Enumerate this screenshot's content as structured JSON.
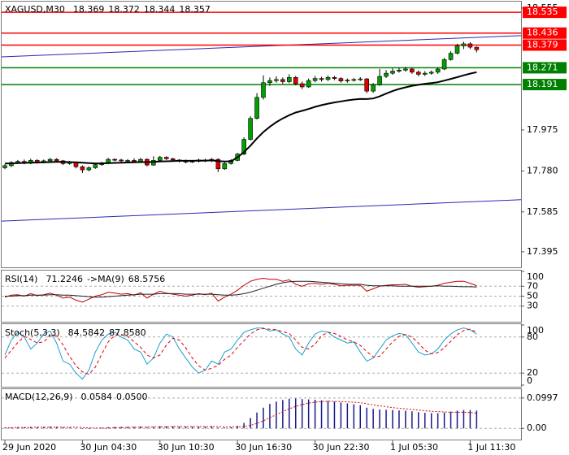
{
  "chart_data": {
    "type": "candlestick",
    "header": [
      "XAGUSD,M30",
      "18.369",
      "18.372",
      "18.344",
      "18.357"
    ],
    "open": [
      17.795,
      17.805,
      17.82,
      17.825,
      17.818,
      17.83,
      17.822,
      17.828,
      17.835,
      17.828,
      17.815,
      17.82,
      17.8,
      17.785,
      17.795,
      17.81,
      17.818,
      17.835,
      17.832,
      17.828,
      17.83,
      17.825,
      17.835,
      17.808,
      17.83,
      17.845,
      17.838,
      17.832,
      17.828,
      17.822,
      17.826,
      17.832,
      17.828,
      17.835,
      17.79,
      17.815,
      17.83,
      17.86,
      17.93,
      18.03,
      18.13,
      18.2,
      18.21,
      18.215,
      18.205,
      18.225,
      18.195,
      18.18,
      18.21,
      18.22,
      18.215,
      18.225,
      18.22,
      18.208,
      18.212,
      18.215,
      18.218,
      18.16,
      18.19,
      18.23,
      18.245,
      18.255,
      18.26,
      18.265,
      18.25,
      18.24,
      18.245,
      18.25,
      18.265,
      18.31,
      18.34,
      18.375,
      18.385,
      18.369
    ],
    "high": [
      17.812,
      17.826,
      17.832,
      17.834,
      17.838,
      17.836,
      17.834,
      17.842,
      17.84,
      17.832,
      17.828,
      17.825,
      17.806,
      17.802,
      17.816,
      17.824,
      17.842,
      17.84,
      17.838,
      17.836,
      17.84,
      17.842,
      17.84,
      17.85,
      17.852,
      17.85,
      17.842,
      17.836,
      17.834,
      17.832,
      17.838,
      17.838,
      17.842,
      17.84,
      17.822,
      17.836,
      17.866,
      17.94,
      18.04,
      18.15,
      18.235,
      18.225,
      18.23,
      18.225,
      18.24,
      18.232,
      18.205,
      18.22,
      18.232,
      18.228,
      18.235,
      18.232,
      18.226,
      18.22,
      18.222,
      18.226,
      18.222,
      18.198,
      18.265,
      18.26,
      18.268,
      18.272,
      18.275,
      18.27,
      18.258,
      18.255,
      18.258,
      18.272,
      18.318,
      18.35,
      18.385,
      18.395,
      18.392,
      18.372
    ],
    "low": [
      17.788,
      17.798,
      17.814,
      17.812,
      17.812,
      17.815,
      17.816,
      17.822,
      17.82,
      17.808,
      17.81,
      17.792,
      17.77,
      17.778,
      17.79,
      17.804,
      17.812,
      17.826,
      17.822,
      17.822,
      17.82,
      17.82,
      17.802,
      17.804,
      17.826,
      17.832,
      17.826,
      17.82,
      17.816,
      17.818,
      17.82,
      17.822,
      17.822,
      17.775,
      17.785,
      17.81,
      17.826,
      17.855,
      17.925,
      18.025,
      18.12,
      18.185,
      18.2,
      18.195,
      18.198,
      18.188,
      18.17,
      18.175,
      18.202,
      18.205,
      18.208,
      18.212,
      18.2,
      18.2,
      18.205,
      18.208,
      18.15,
      18.152,
      18.185,
      18.222,
      18.238,
      18.248,
      18.252,
      18.242,
      18.23,
      18.232,
      18.238,
      18.242,
      18.26,
      18.305,
      18.335,
      18.36,
      18.36,
      18.344
    ],
    "close": [
      17.805,
      17.82,
      17.825,
      17.818,
      17.83,
      17.822,
      17.828,
      17.835,
      17.828,
      17.815,
      17.82,
      17.8,
      17.785,
      17.795,
      17.81,
      17.818,
      17.835,
      17.832,
      17.828,
      17.83,
      17.825,
      17.835,
      17.808,
      17.83,
      17.845,
      17.838,
      17.832,
      17.828,
      17.822,
      17.826,
      17.832,
      17.828,
      17.835,
      17.79,
      17.815,
      17.83,
      17.86,
      17.93,
      18.03,
      18.13,
      18.2,
      18.21,
      18.215,
      18.205,
      18.225,
      18.195,
      18.18,
      18.21,
      18.22,
      18.215,
      18.225,
      18.22,
      18.208,
      18.212,
      18.215,
      18.218,
      18.16,
      18.19,
      18.23,
      18.245,
      18.255,
      18.26,
      18.265,
      18.25,
      18.24,
      18.245,
      18.25,
      18.265,
      18.31,
      18.34,
      18.375,
      18.385,
      18.369,
      18.357
    ],
    "up_color": "#00a000",
    "down_color": "#e00000",
    "ma": {
      "color": "#000000",
      "values": [
        17.815,
        17.816,
        17.817,
        17.818,
        17.819,
        17.82,
        17.821,
        17.822,
        17.823,
        17.823,
        17.822,
        17.821,
        17.819,
        17.817,
        17.816,
        17.816,
        17.817,
        17.818,
        17.819,
        17.82,
        17.821,
        17.822,
        17.822,
        17.823,
        17.825,
        17.826,
        17.827,
        17.828,
        17.828,
        17.828,
        17.829,
        17.829,
        17.83,
        17.827,
        17.825,
        17.826,
        17.845,
        17.87,
        17.9,
        17.935,
        17.965,
        17.99,
        18.012,
        18.03,
        18.045,
        18.058,
        18.066,
        18.075,
        18.085,
        18.093,
        18.1,
        18.106,
        18.111,
        18.116,
        18.12,
        18.123,
        18.122,
        18.125,
        18.135,
        18.148,
        18.16,
        18.17,
        18.178,
        18.185,
        18.19,
        18.195,
        18.198,
        18.202,
        18.21,
        18.218,
        18.226,
        18.235,
        18.243,
        18.25
      ]
    },
    "ylim": [
      17.325,
      18.582
    ],
    "yticks": [
      18.555,
      17.975,
      {
        "value": 17.78,
        "label": "17.780"
      },
      17.585,
      17.395
    ],
    "trendlines": [
      {
        "values": [
          18.323,
          18.424
        ],
        "color": "#2a2ab0"
      },
      {
        "values": [
          17.541,
          17.643
        ],
        "color": "#2a2ab0"
      }
    ],
    "levels": [
      {
        "value": 18.535,
        "color": "#ff0000"
      },
      {
        "value": 18.436,
        "color": "#ff0000"
      },
      {
        "value": 18.379,
        "color": "#ff0000"
      },
      {
        "value": 18.271,
        "color": "#008000"
      },
      {
        "value": 18.191,
        "color": "#008000"
      }
    ],
    "xticks": [
      {
        "value": 0,
        "label": "29 Jun 2020"
      },
      {
        "value": 12,
        "label": "30 Jun 04:30"
      },
      {
        "value": 24,
        "label": "30 Jun 10:30"
      },
      {
        "value": 36,
        "label": "30 Jun 16:30"
      },
      {
        "value": 48,
        "label": "30 Jun 22:30"
      },
      {
        "value": 60,
        "label": "1 Jul 05:30"
      },
      {
        "value": 72,
        "label": "1 Jul 11:30"
      }
    ],
    "indicators": [
      {
        "header": [
          "RSI(14)",
          "71.2246",
          "->MA(9)",
          "68.5756"
        ],
        "ylim": [
          0,
          100
        ],
        "yticks": [
          100,
          70,
          50,
          30
        ],
        "series": [
          {
            "color": "#c00000",
            "style": "solid",
            "values": [
              48,
              52,
              53,
              50,
              55,
              51,
              53,
              56,
              52,
              46,
              48,
              42,
              38,
              44,
              50,
              53,
              58,
              56,
              54,
              55,
              52,
              57,
              46,
              54,
              60,
              56,
              54,
              52,
              50,
              52,
              55,
              53,
              56,
              40,
              48,
              54,
              62,
              72,
              80,
              84,
              86,
              84,
              84,
              80,
              83,
              74,
              70,
              75,
              76,
              74,
              76,
              74,
              71,
              72,
              72,
              72,
              60,
              65,
              70,
              72,
              73,
              73,
              74,
              70,
              68,
              69,
              70,
              72,
              76,
              78,
              80,
              80,
              76,
              71.2246
            ]
          },
          {
            "color": "#202020",
            "style": "solid",
            "values": [
              50,
              50,
              51,
              51,
              52,
              52,
              52,
              53,
              53,
              52,
              52,
              51,
              50,
              49,
              48,
              48,
              49,
              50,
              51,
              52,
              53,
              54,
              54,
              54,
              55,
              55,
              55,
              55,
              54,
              54,
              54,
              54,
              54,
              53,
              52,
              52,
              53,
              55,
              58,
              62,
              66,
              70,
              74,
              77,
              79,
              80,
              80,
              80,
              79,
              78,
              77,
              76,
              75,
              74,
              74,
              74,
              72,
              71,
              71,
              71,
              71,
              70,
              70,
              70,
              70,
              70,
              70,
              71,
              70,
              70,
              69.5,
              69,
              69,
              68.5756
            ]
          }
        ]
      },
      {
        "header": [
          "Stoch(5,3,3)",
          "84.5842",
          "87.8580"
        ],
        "ylim": [
          0,
          100
        ],
        "yticks": [
          100,
          80,
          20,
          0
        ],
        "series": [
          {
            "color": "#1aa0c8",
            "style": "solid",
            "values": [
              50,
              75,
              88,
              80,
              60,
              70,
              85,
              90,
              70,
              40,
              35,
              20,
              10,
              25,
              55,
              75,
              85,
              88,
              80,
              75,
              60,
              55,
              35,
              45,
              70,
              85,
              80,
              60,
              45,
              30,
              20,
              25,
              40,
              35,
              55,
              60,
              75,
              88,
              92,
              95,
              95,
              90,
              92,
              85,
              80,
              60,
              50,
              70,
              85,
              90,
              88,
              80,
              75,
              70,
              72,
              55,
              40,
              45,
              60,
              75,
              82,
              86,
              84,
              70,
              55,
              50,
              52,
              60,
              75,
              85,
              92,
              95,
              92,
              84.5842
            ]
          },
          {
            "color": "#e00000",
            "style": "dashed",
            "values": [
              45,
              58,
              71,
              81,
              76,
              70,
              72,
              82,
              82,
              67,
              48,
              32,
              22,
              18,
              30,
              52,
              72,
              83,
              84,
              81,
              72,
              63,
              50,
              45,
              50,
              67,
              78,
              75,
              62,
              45,
              32,
              25,
              28,
              33,
              43,
              50,
              63,
              74,
              85,
              92,
              94,
              93,
              92,
              89,
              86,
              75,
              63,
              60,
              68,
              82,
              88,
              86,
              81,
              75,
              72,
              66,
              56,
              47,
              48,
              60,
              72,
              81,
              84,
              80,
              70,
              58,
              52,
              54,
              62,
              73,
              84,
              91,
              93,
              87.858
            ]
          }
        ]
      },
      {
        "header": [
          "MACD(12,26,9)",
          "0.0584",
          "0.0500"
        ],
        "ylim": [
          -0.0367,
          0.1286
        ],
        "yticks": [
          0.0997,
          {
            "value": 0,
            "label": "0.00"
          }
        ],
        "series": [
          {
            "color": "#1a1a8c",
            "style": "histogram",
            "values": [
              0.002,
              0.003,
              0.004,
              0.004,
              0.005,
              0.004,
              0.005,
              0.006,
              0.005,
              0.004,
              0.003,
              0.001,
              -0.002,
              -0.002,
              0.0,
              0.002,
              0.004,
              0.005,
              0.005,
              0.005,
              0.005,
              0.006,
              0.004,
              0.005,
              0.007,
              0.007,
              0.007,
              0.006,
              0.006,
              0.006,
              0.006,
              0.006,
              0.007,
              0.003,
              0.003,
              0.004,
              0.008,
              0.018,
              0.034,
              0.052,
              0.068,
              0.08,
              0.088,
              0.093,
              0.097,
              0.098,
              0.096,
              0.095,
              0.094,
              0.092,
              0.09,
              0.088,
              0.085,
              0.082,
              0.079,
              0.076,
              0.068,
              0.064,
              0.062,
              0.061,
              0.06,
              0.059,
              0.058,
              0.056,
              0.053,
              0.051,
              0.05,
              0.05,
              0.052,
              0.055,
              0.058,
              0.06,
              0.06,
              0.0584
            ]
          },
          {
            "color": "#e00000",
            "style": "dotted",
            "values": [
              0.002,
              0.002,
              0.003,
              0.003,
              0.003,
              0.004,
              0.004,
              0.004,
              0.004,
              0.004,
              0.004,
              0.004,
              0.003,
              0.002,
              0.001,
              0.001,
              0.001,
              0.002,
              0.003,
              0.003,
              0.004,
              0.004,
              0.005,
              0.005,
              0.005,
              0.005,
              0.006,
              0.006,
              0.006,
              0.006,
              0.006,
              0.006,
              0.006,
              0.006,
              0.005,
              0.005,
              0.005,
              0.006,
              0.01,
              0.016,
              0.025,
              0.035,
              0.045,
              0.055,
              0.064,
              0.072,
              0.078,
              0.083,
              0.086,
              0.088,
              0.089,
              0.089,
              0.088,
              0.087,
              0.086,
              0.084,
              0.081,
              0.077,
              0.074,
              0.071,
              0.068,
              0.066,
              0.064,
              0.062,
              0.06,
              0.058,
              0.056,
              0.055,
              0.054,
              0.053,
              0.053,
              0.053,
              0.052,
              0.05
            ]
          }
        ]
      }
    ]
  }
}
